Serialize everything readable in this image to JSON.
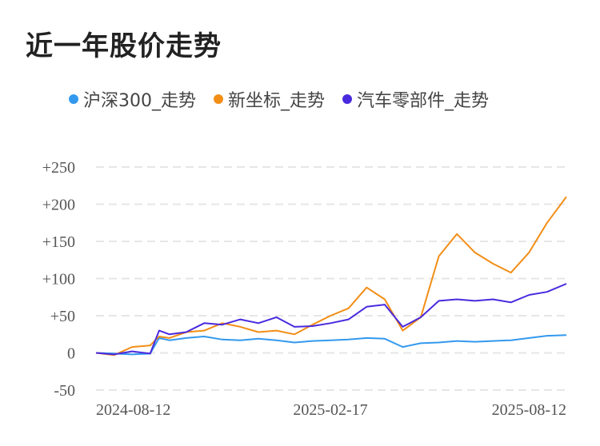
{
  "title": "近一年股价走势",
  "colors": {
    "hs300": "#3399ee",
    "xzb": "#f28e16",
    "qcljb": "#4a2adf",
    "grid": "#e6e6e6",
    "axis_text": "#555555"
  },
  "chart_data": {
    "type": "line",
    "title": "近一年股价走势",
    "xlabel": "",
    "ylabel": "",
    "ylim": [
      -50,
      250
    ],
    "y_ticks": [
      "+250",
      "+200",
      "+150",
      "+100",
      "+50",
      "0",
      "-50"
    ],
    "y_tick_values": [
      250,
      200,
      150,
      100,
      50,
      0,
      -50
    ],
    "x_tick_labels": [
      "2024-08-12",
      "2025-02-17",
      "2025-08-12"
    ],
    "x_range": [
      "2024-08-12",
      "2025-08-12"
    ],
    "grid": true,
    "legend_position": "top",
    "series": [
      {
        "name": "沪深300_走势",
        "x": [
          "2024-08-12",
          "2024-08-26",
          "2024-09-09",
          "2024-09-23",
          "2024-09-30",
          "2024-10-08",
          "2024-10-21",
          "2024-11-04",
          "2024-11-18",
          "2024-12-02",
          "2024-12-16",
          "2024-12-30",
          "2025-01-13",
          "2025-01-27",
          "2025-02-10",
          "2025-02-24",
          "2025-03-10",
          "2025-03-24",
          "2025-04-07",
          "2025-04-21",
          "2025-05-05",
          "2025-05-19",
          "2025-06-02",
          "2025-06-16",
          "2025-06-30",
          "2025-07-14",
          "2025-07-28",
          "2025-08-12"
        ],
        "values": [
          0,
          -1,
          -2,
          -1,
          20,
          17,
          20,
          22,
          18,
          17,
          19,
          17,
          14,
          16,
          17,
          18,
          20,
          19,
          8,
          13,
          14,
          16,
          15,
          16,
          17,
          20,
          23,
          24
        ]
      },
      {
        "name": "新坐标_走势",
        "x": [
          "2024-08-12",
          "2024-08-26",
          "2024-09-09",
          "2024-09-23",
          "2024-09-30",
          "2024-10-08",
          "2024-10-21",
          "2024-11-04",
          "2024-11-18",
          "2024-12-02",
          "2024-12-16",
          "2024-12-30",
          "2025-01-13",
          "2025-01-27",
          "2025-02-10",
          "2025-02-24",
          "2025-03-10",
          "2025-03-24",
          "2025-04-07",
          "2025-04-21",
          "2025-05-05",
          "2025-05-19",
          "2025-06-02",
          "2025-06-16",
          "2025-06-30",
          "2025-07-14",
          "2025-07-28",
          "2025-08-12"
        ],
        "values": [
          0,
          -3,
          8,
          10,
          22,
          20,
          28,
          30,
          40,
          35,
          28,
          30,
          25,
          38,
          50,
          60,
          88,
          72,
          30,
          48,
          130,
          160,
          135,
          120,
          108,
          135,
          175,
          210
        ]
      },
      {
        "name": "汽车零部件_走势",
        "x": [
          "2024-08-12",
          "2024-08-26",
          "2024-09-09",
          "2024-09-23",
          "2024-09-30",
          "2024-10-08",
          "2024-10-21",
          "2024-11-04",
          "2024-11-18",
          "2024-12-02",
          "2024-12-16",
          "2024-12-30",
          "2025-01-13",
          "2025-01-27",
          "2025-02-10",
          "2025-02-24",
          "2025-03-10",
          "2025-03-24",
          "2025-04-07",
          "2025-04-21",
          "2025-05-05",
          "2025-05-19",
          "2025-06-02",
          "2025-06-16",
          "2025-06-30",
          "2025-07-14",
          "2025-07-28",
          "2025-08-12"
        ],
        "values": [
          0,
          -2,
          2,
          -1,
          30,
          25,
          28,
          40,
          38,
          45,
          40,
          48,
          35,
          36,
          40,
          45,
          62,
          65,
          35,
          48,
          70,
          72,
          70,
          72,
          68,
          78,
          82,
          93
        ]
      }
    ]
  }
}
